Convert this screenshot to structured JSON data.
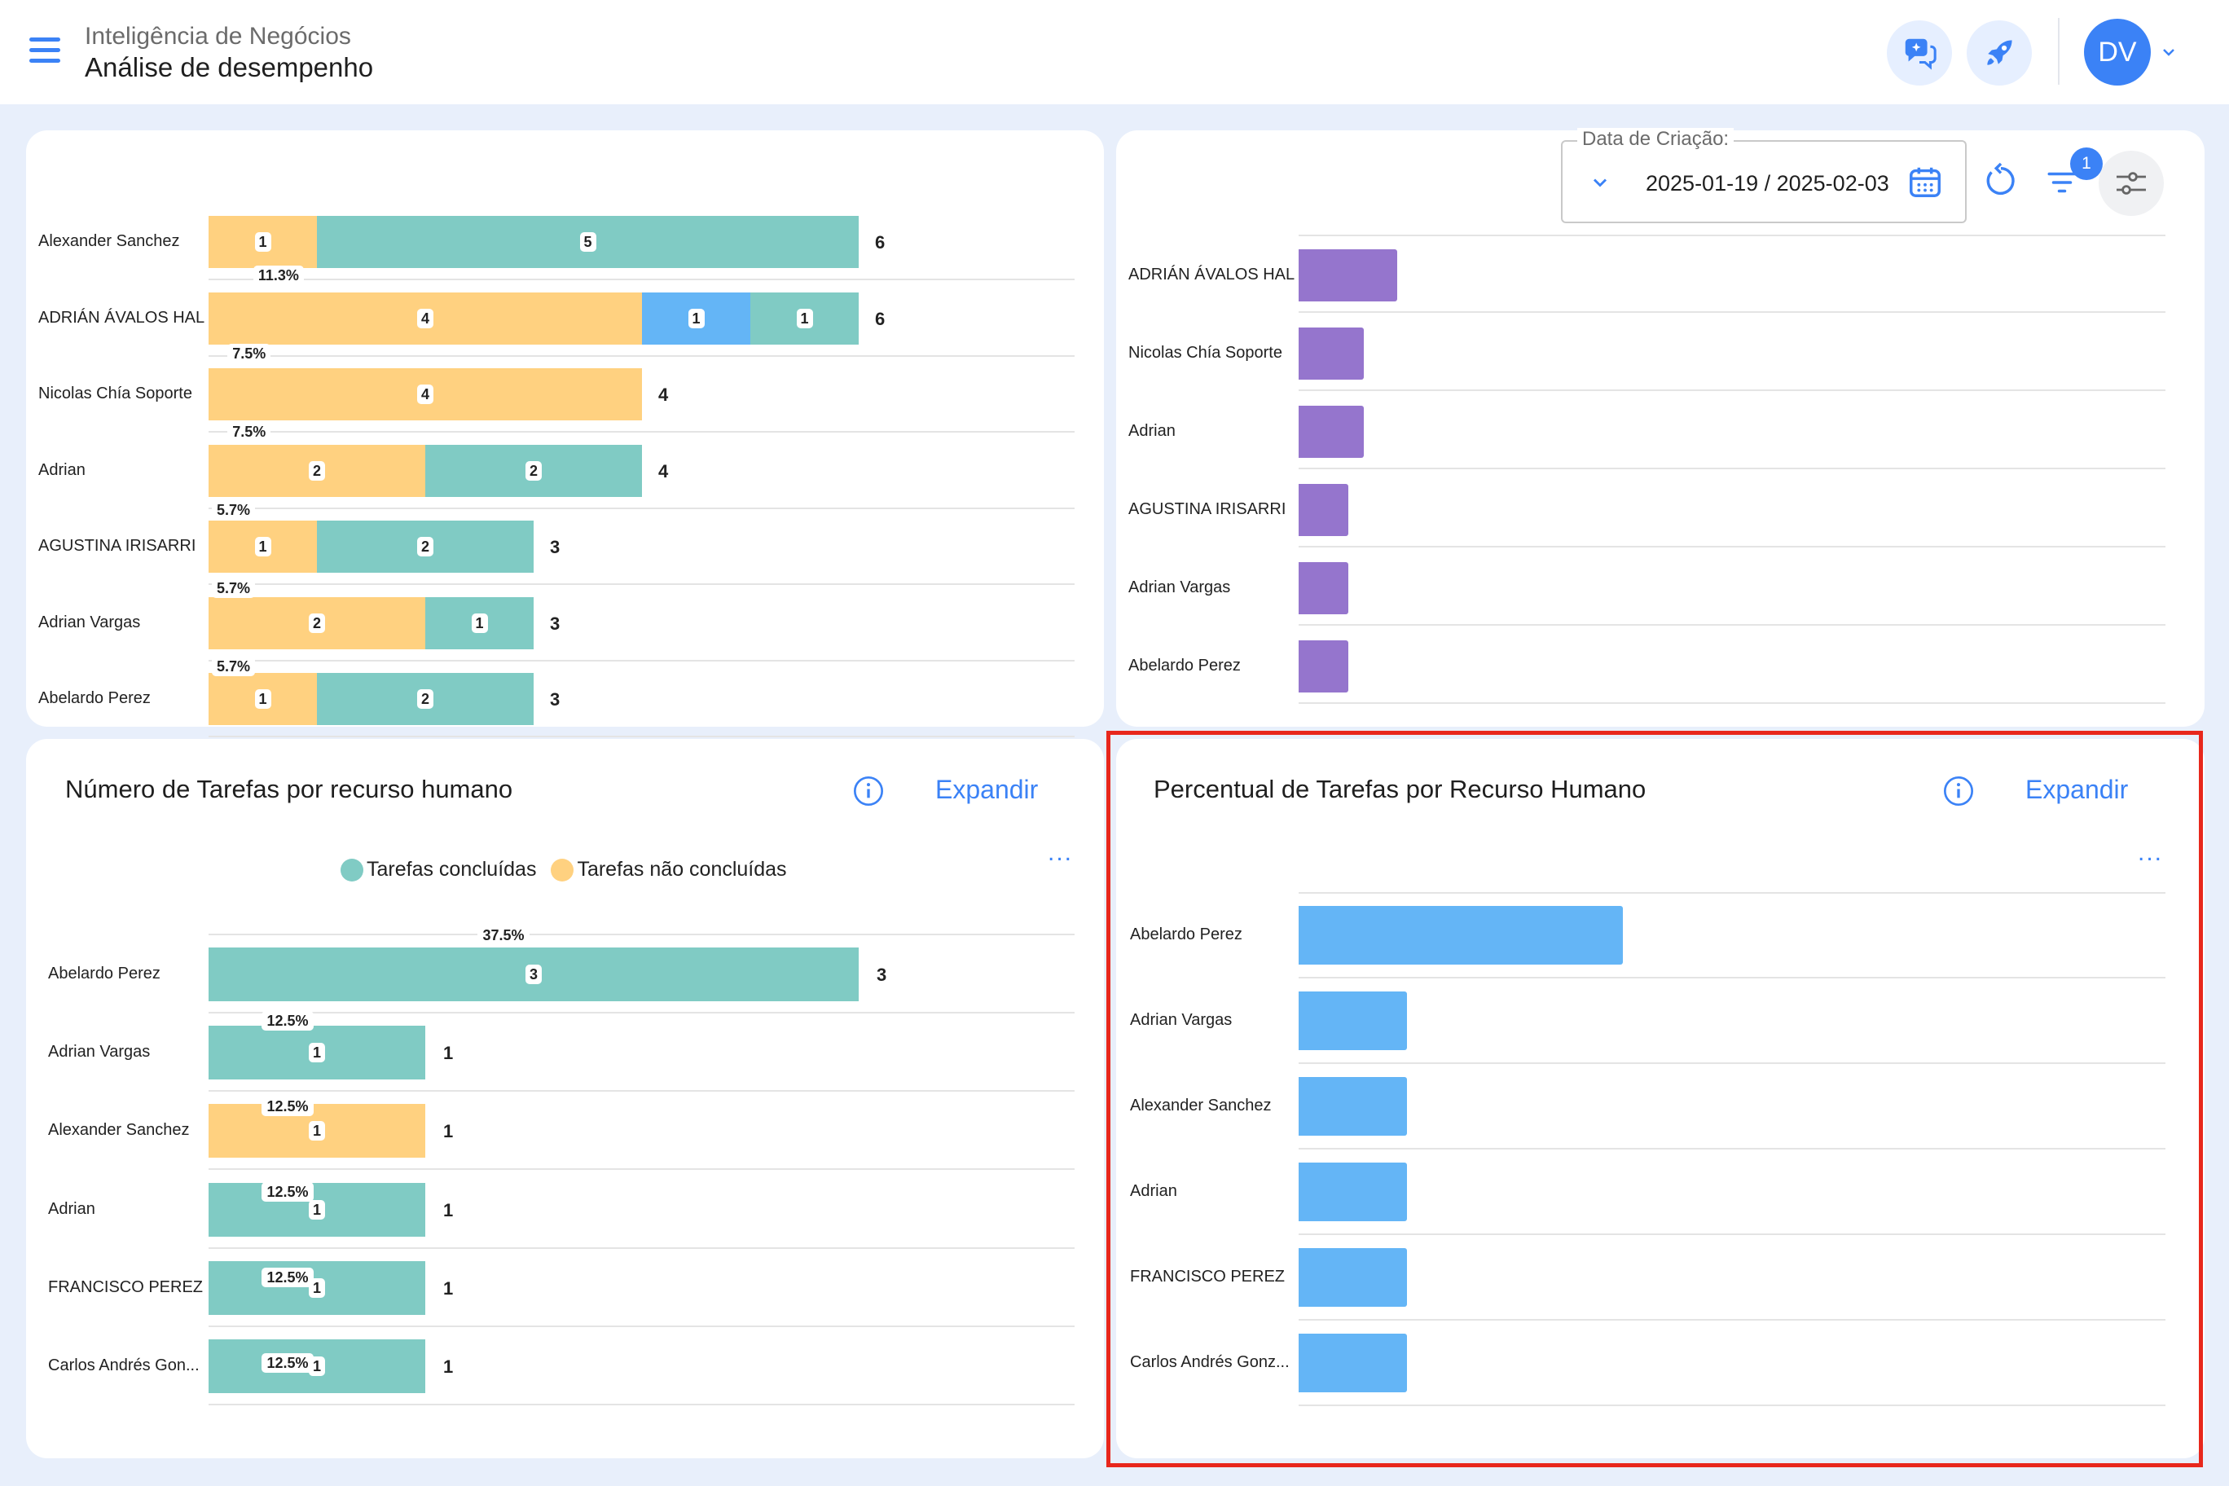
{
  "header": {
    "app_title": "Inteligência de Negócios",
    "page_title": "Análise de desempenho",
    "avatar_initials": "DV"
  },
  "filters": {
    "date_label": "Data de Criação:",
    "date_value": "2025-01-19 / 2025-02-03",
    "active_filter_count": "1"
  },
  "colors": {
    "accent": "#3b82f6",
    "completed": "#80cbc4",
    "not_completed": "#ffd180",
    "other": "#64b5f6",
    "purple": "#9575cd"
  },
  "top_left_chart": {
    "rows": [
      {
        "name": "Alexander Sanchez",
        "segments": [
          {
            "value": 1,
            "color": "#ffd180"
          },
          {
            "value": 5,
            "color": "#80cbc4"
          }
        ],
        "total": "6"
      },
      {
        "name": "ADRIÁN ÁVALOS HAL",
        "segments": [
          {
            "value": 4,
            "color": "#ffd180"
          },
          {
            "value": 1,
            "color": "#64b5f6"
          },
          {
            "value": 1,
            "color": "#80cbc4"
          }
        ],
        "total": "6"
      },
      {
        "name": "Nicolas Chía Soporte",
        "segments": [
          {
            "value": 4,
            "color": "#ffd180"
          }
        ],
        "total": "4"
      },
      {
        "name": "Adrian",
        "segments": [
          {
            "value": 2,
            "color": "#ffd180"
          },
          {
            "value": 2,
            "color": "#80cbc4"
          }
        ],
        "total": "4"
      },
      {
        "name": "AGUSTINA IRISARRI",
        "segments": [
          {
            "value": 1,
            "color": "#ffd180"
          },
          {
            "value": 2,
            "color": "#80cbc4"
          }
        ],
        "total": "3"
      },
      {
        "name": "Adrian Vargas",
        "segments": [
          {
            "value": 2,
            "color": "#ffd180"
          },
          {
            "value": 1,
            "color": "#80cbc4"
          }
        ],
        "total": "3"
      },
      {
        "name": "Abelardo Perez",
        "segments": [
          {
            "value": 1,
            "color": "#ffd180"
          },
          {
            "value": 2,
            "color": "#80cbc4"
          }
        ],
        "total": "3"
      }
    ]
  },
  "top_right_chart": {
    "rows": [
      {
        "name": "ADRIÁN ÁVALOS HAL",
        "value": 11.3,
        "label": "11.3%"
      },
      {
        "name": "Nicolas Chía Soporte",
        "value": 7.5,
        "label": "7.5%"
      },
      {
        "name": "Adrian",
        "value": 7.5,
        "label": "7.5%"
      },
      {
        "name": "AGUSTINA IRISARRI",
        "value": 5.7,
        "label": "5.7%"
      },
      {
        "name": "Adrian Vargas",
        "value": 5.7,
        "label": "5.7%"
      },
      {
        "name": "Abelardo Perez",
        "value": 5.7,
        "label": "5.7%"
      }
    ]
  },
  "bottom_left_card": {
    "title": "Número de Tarefas por recurso humano",
    "expand_label": "Expandir",
    "more_label": "...",
    "legend": [
      {
        "label": "Tarefas concluídas",
        "color": "#80cbc4"
      },
      {
        "label": "Tarefas não concluídas",
        "color": "#ffd180"
      }
    ],
    "rows": [
      {
        "name": "Abelardo Perez",
        "value": 3,
        "color": "#80cbc4",
        "total": "3"
      },
      {
        "name": "Adrian Vargas",
        "value": 1,
        "color": "#80cbc4",
        "total": "1"
      },
      {
        "name": "Alexander Sanchez",
        "value": 1,
        "color": "#ffd180",
        "total": "1"
      },
      {
        "name": "Adrian",
        "value": 1,
        "color": "#80cbc4",
        "total": "1"
      },
      {
        "name": "FRANCISCO PEREZ",
        "value": 1,
        "color": "#80cbc4",
        "total": "1"
      },
      {
        "name": "Carlos Andrés Gon...",
        "value": 1,
        "color": "#80cbc4",
        "total": "1"
      }
    ]
  },
  "bottom_right_card": {
    "title": "Percentual de Tarefas por Recurso Humano",
    "expand_label": "Expandir",
    "more_label": "...",
    "rows": [
      {
        "name": "Abelardo Perez",
        "value": 37.5,
        "label": "37.5%"
      },
      {
        "name": "Adrian Vargas",
        "value": 12.5,
        "label": "12.5%"
      },
      {
        "name": "Alexander Sanchez",
        "value": 12.5,
        "label": "12.5%"
      },
      {
        "name": "Adrian",
        "value": 12.5,
        "label": "12.5%"
      },
      {
        "name": "FRANCISCO PEREZ",
        "value": 12.5,
        "label": "12.5%"
      },
      {
        "name": "Carlos Andrés Gonz...",
        "value": 12.5,
        "label": "12.5%"
      }
    ]
  }
}
